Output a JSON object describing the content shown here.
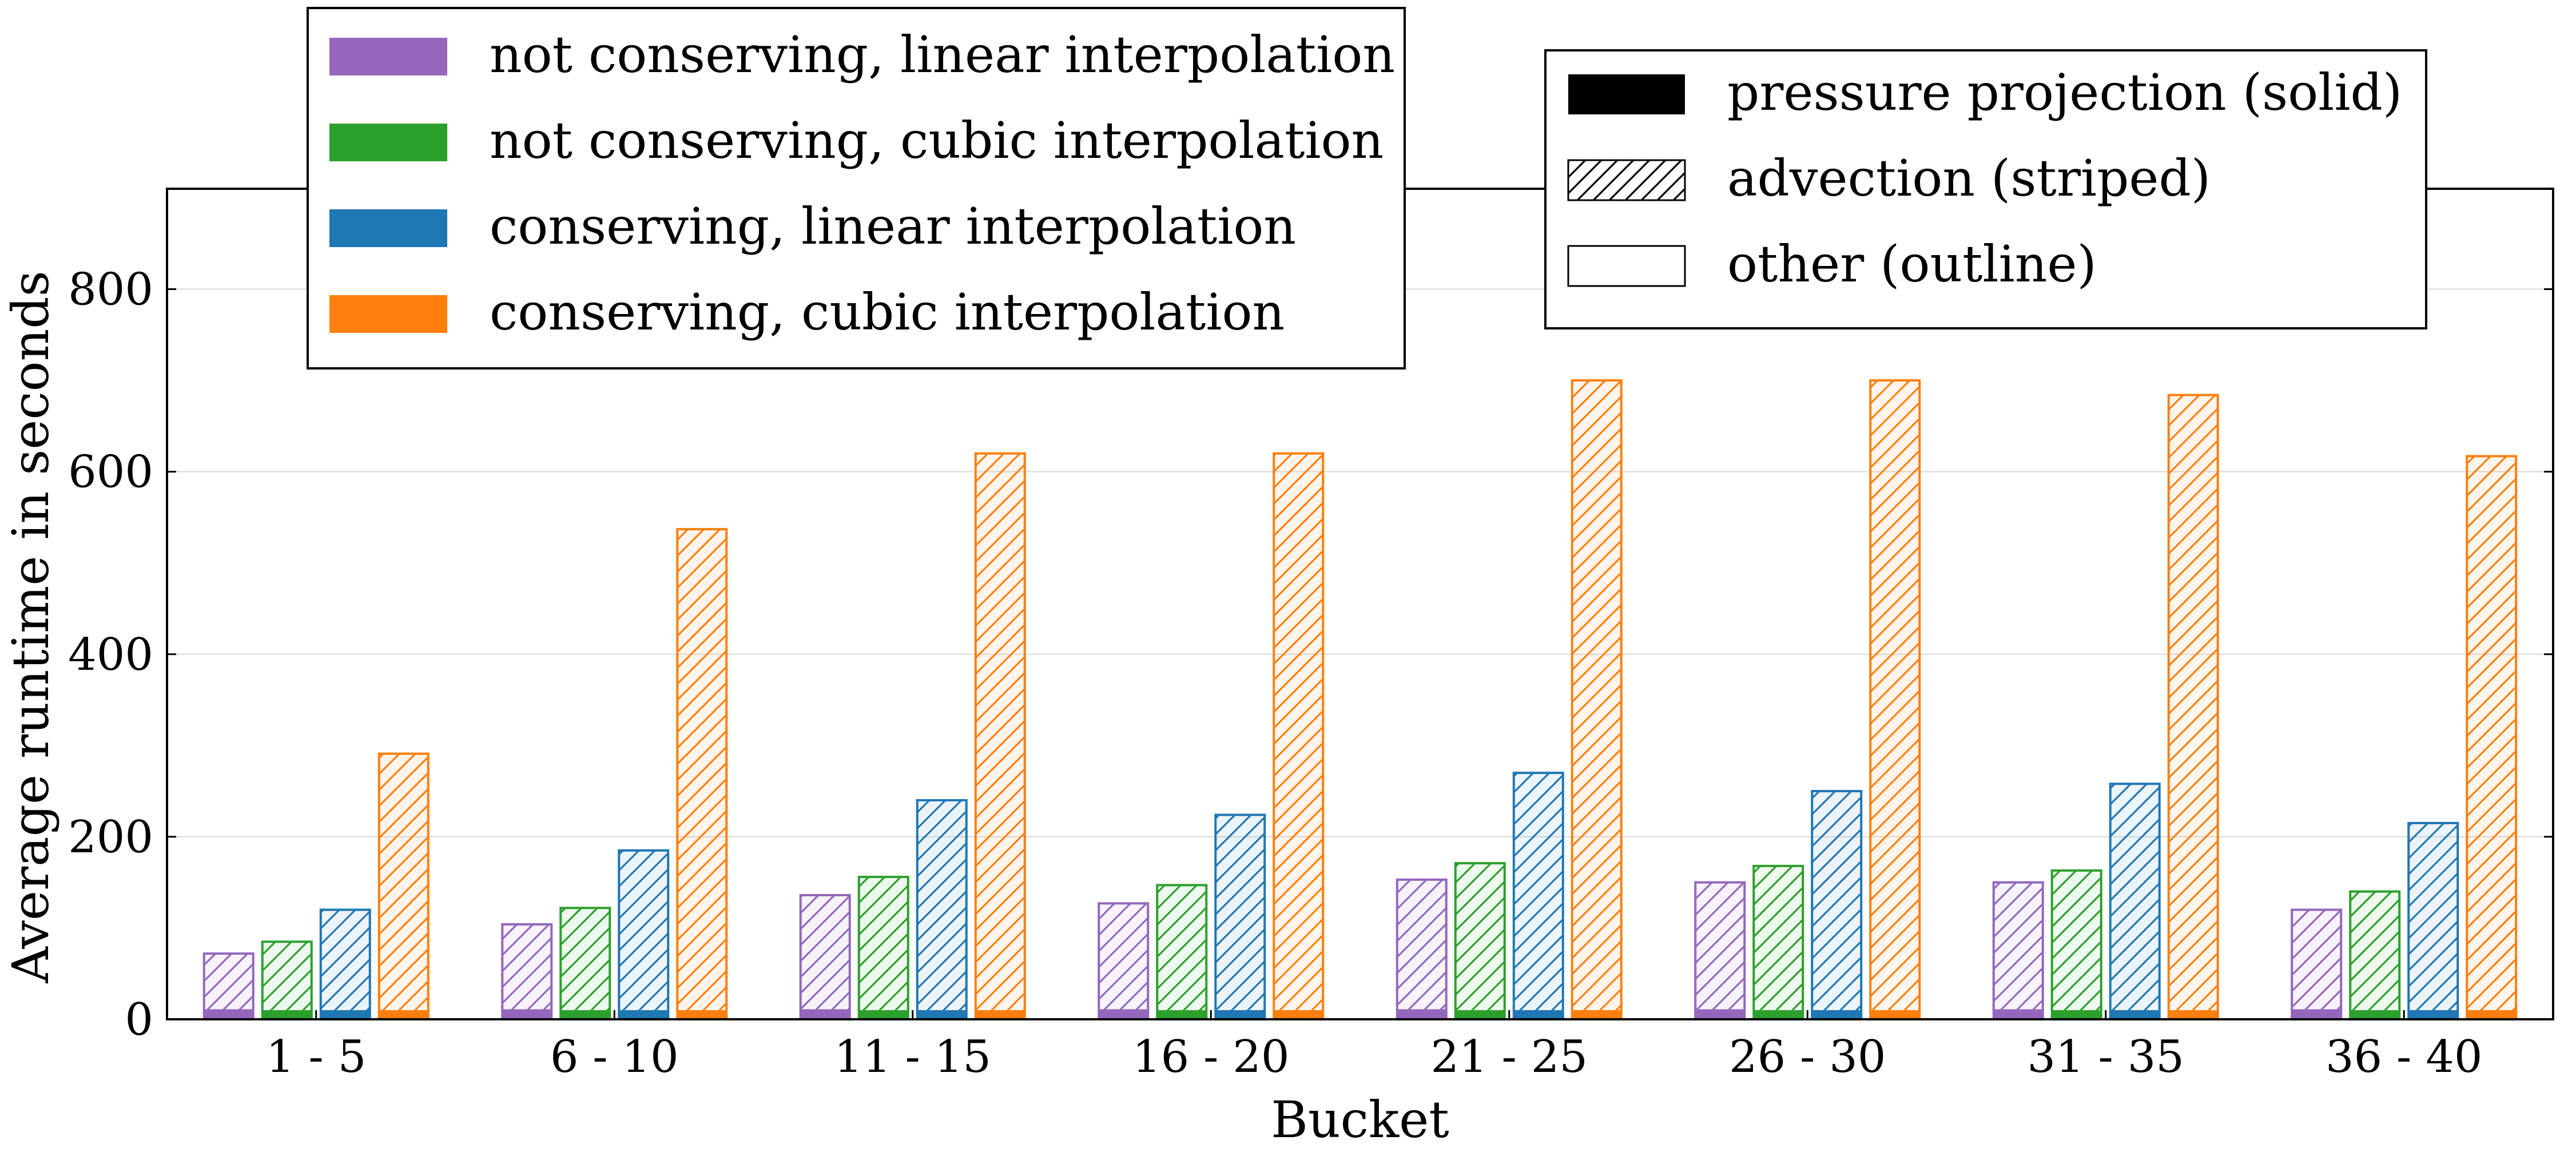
{
  "chart_data": {
    "type": "bar",
    "title": "",
    "xlabel": "Bucket",
    "ylabel": "Average runtime in seconds",
    "ylim": [
      0,
      910
    ],
    "yticks": [
      0,
      200,
      400,
      600,
      800
    ],
    "grid": "horizontal",
    "categories": [
      "1 - 5",
      "6 - 10",
      "11 - 15",
      "16 - 20",
      "21 - 25",
      "26 - 30",
      "31 - 35",
      "36 - 40"
    ],
    "series": [
      {
        "name": "not conserving, linear interpolation",
        "color": "#9467bd",
        "total": [
          72,
          104,
          136,
          127,
          153,
          150,
          150,
          120
        ],
        "pressure_projection": [
          11,
          11,
          11,
          11,
          11,
          11,
          11,
          11
        ]
      },
      {
        "name": "not conserving, cubic interpolation",
        "color": "#2ca02c",
        "total": [
          85,
          122,
          156,
          147,
          171,
          168,
          163,
          140
        ],
        "pressure_projection": [
          10,
          10,
          10,
          10,
          10,
          10,
          10,
          10
        ]
      },
      {
        "name": "conserving, linear interpolation",
        "color": "#1f77b4",
        "total": [
          120,
          185,
          240,
          224,
          270,
          250,
          258,
          215
        ],
        "pressure_projection": [
          10,
          10,
          10,
          10,
          10,
          10,
          10,
          10
        ]
      },
      {
        "name": "conserving, cubic interpolation",
        "color": "#ff7f0e",
        "total": [
          291,
          537,
          620,
          620,
          700,
          700,
          684,
          617
        ],
        "pressure_projection": [
          10,
          10,
          10,
          10,
          10,
          10,
          10,
          10
        ]
      }
    ],
    "legend_series": {
      "placement": "top-left",
      "entries": [
        "not conserving, linear interpolation",
        "not conserving, cubic interpolation",
        "conserving, linear interpolation",
        "conserving, cubic interpolation"
      ]
    },
    "legend_components": {
      "placement": "top-right",
      "entries": [
        {
          "label": "pressure projection (solid)",
          "style": "solid"
        },
        {
          "label": "advection (striped)",
          "style": "striped"
        },
        {
          "label": "other (outline)",
          "style": "outline"
        }
      ]
    }
  }
}
